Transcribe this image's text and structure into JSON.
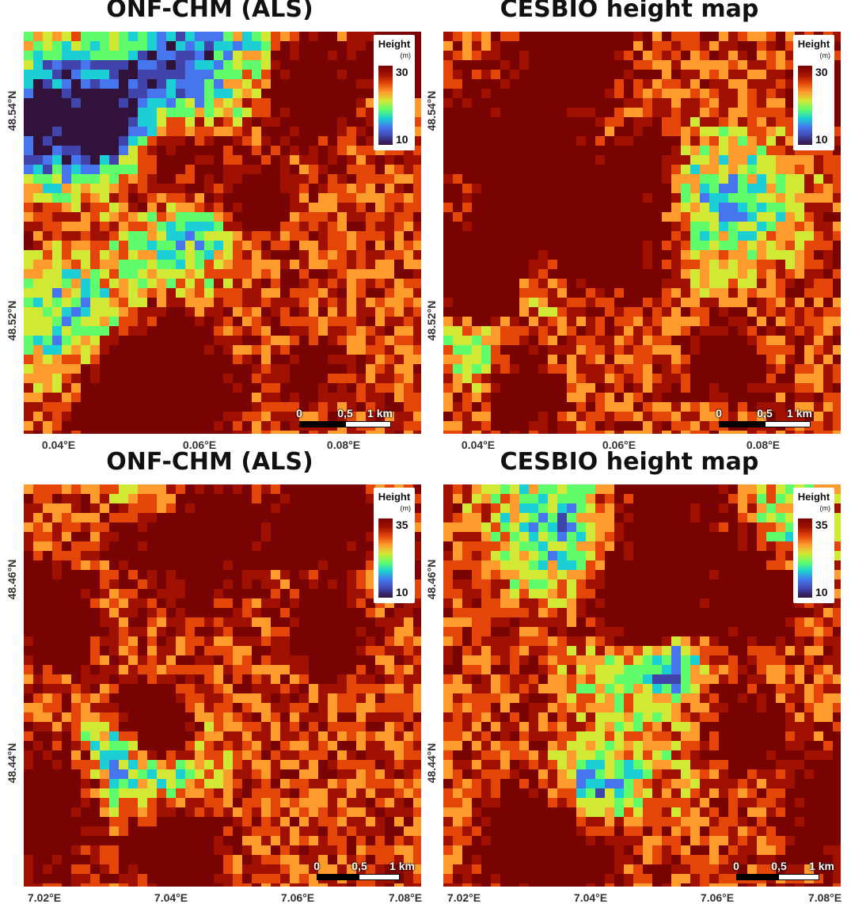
{
  "panels": [
    {
      "title": "ONF-CHM (ALS)",
      "lat_labels": [
        "48.54°N",
        "48.52°N"
      ],
      "lon_labels": [
        "0.04°E",
        "0.06°E",
        "0.08°E"
      ],
      "legend": {
        "title": "Height",
        "unit": "(m)",
        "max": "30",
        "min": "10"
      },
      "scale": {
        "zero": "0",
        "half": "0,5",
        "full": "1 km"
      },
      "seed": 11
    },
    {
      "title": "CESBIO height map",
      "lat_labels": [
        "48.54°N",
        "48.52°N"
      ],
      "lon_labels": [
        "0.04°E",
        "0.06°E",
        "0.08°E"
      ],
      "legend": {
        "title": "Height",
        "unit": "(m)",
        "max": "30",
        "min": "10"
      },
      "scale": {
        "zero": "0",
        "half": "0,5",
        "full": "1 km"
      },
      "seed": 23
    },
    {
      "title": "ONF-CHM (ALS)",
      "lat_labels": [
        "48.46°N",
        "48.44°N"
      ],
      "lon_labels": [
        "7.02°E",
        "7.04°E",
        "7.06°E",
        "7.08°E"
      ],
      "legend": {
        "title": "Height",
        "unit": "(m)",
        "max": "35",
        "min": "10"
      },
      "scale": {
        "zero": "0",
        "half": "0,5",
        "full": "1 km"
      },
      "seed": 37
    },
    {
      "title": "CESBIO height map",
      "lat_labels": [
        "48.46°N",
        "48.44°N"
      ],
      "lon_labels": [
        "7.02°E",
        "7.04°E",
        "7.06°E",
        "7.08°E"
      ],
      "legend": {
        "title": "Height",
        "unit": "(m)",
        "max": "35",
        "min": "10"
      },
      "scale": {
        "zero": "0",
        "half": "0,5",
        "full": "1 km"
      },
      "seed": 51
    }
  ],
  "colormap": [
    "#30123b",
    "#4145ab",
    "#4675ed",
    "#1bcfd4",
    "#61fc6c",
    "#d1e834",
    "#fe9b2d",
    "#e4460a",
    "#a01101",
    "#7a0403"
  ]
}
